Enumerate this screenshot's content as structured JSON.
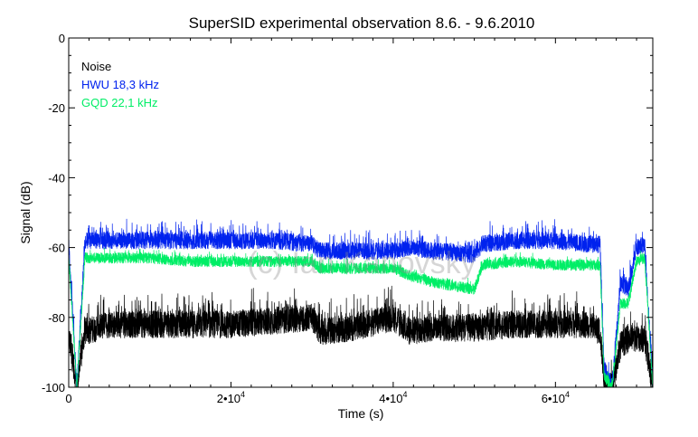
{
  "chart_data": {
    "type": "line",
    "title": "SuperSID experimental observation 8.6. - 9.6.2010",
    "xlabel": "Time (s)",
    "ylabel": "Signal (dB)",
    "xlim": [
      0,
      72000
    ],
    "ylim": [
      -100,
      0
    ],
    "x_ticks": [
      {
        "value": 0,
        "label": "0",
        "sup": ""
      },
      {
        "value": 20000,
        "label": "2•10",
        "sup": "4"
      },
      {
        "value": 40000,
        "label": "4•10",
        "sup": "4"
      },
      {
        "value": 60000,
        "label": "6•10",
        "sup": "4"
      }
    ],
    "y_ticks": [
      {
        "value": 0,
        "label": "0"
      },
      {
        "value": -20,
        "label": "-20"
      },
      {
        "value": -40,
        "label": "-40"
      },
      {
        "value": -60,
        "label": "-60"
      },
      {
        "value": -80,
        "label": "-80"
      },
      {
        "value": -100,
        "label": "-100"
      }
    ],
    "grid": false,
    "legend_position": "top-left",
    "watermark": "(c) Ian Kanovsky",
    "series": [
      {
        "name": "Noise",
        "color": "#000000",
        "x": [
          0,
          1000,
          2000,
          5000,
          10000,
          15000,
          20000,
          25000,
          30000,
          31000,
          35000,
          40000,
          42000,
          45000,
          50000,
          55000,
          60000,
          64000,
          65500,
          66000,
          67000,
          68000,
          69000,
          70000,
          71000,
          72000
        ],
        "values": [
          -85,
          -100,
          -84,
          -82,
          -82,
          -82,
          -82,
          -81,
          -80,
          -84,
          -83,
          -80,
          -84,
          -83,
          -83,
          -82,
          -82,
          -82,
          -84,
          -98,
          -100,
          -88,
          -86,
          -86,
          -86,
          -100
        ]
      },
      {
        "name": "HWU 18,3 kHz",
        "color": "#0022ee",
        "x": [
          0,
          1000,
          2000,
          5000,
          10000,
          15000,
          20000,
          25000,
          30000,
          31000,
          35000,
          40000,
          42000,
          45000,
          50000,
          51000,
          55000,
          60000,
          64000,
          65500,
          66000,
          67000,
          68000,
          69000,
          70000,
          71000,
          72000
        ],
        "values": [
          -59,
          -100,
          -58,
          -58,
          -58,
          -58,
          -58,
          -58,
          -59,
          -61,
          -61,
          -61,
          -60,
          -61,
          -62,
          -59,
          -58,
          -58,
          -59,
          -59,
          -95,
          -100,
          -70,
          -72,
          -60,
          -59,
          -100
        ]
      },
      {
        "name": "GQD 22,1 kHz",
        "color": "#00ee66",
        "x": [
          0,
          1000,
          2000,
          5000,
          10000,
          15000,
          20000,
          25000,
          30000,
          31000,
          35000,
          40000,
          42000,
          45000,
          50000,
          51000,
          55000,
          60000,
          64000,
          65500,
          66000,
          67000,
          68000,
          69000,
          70000,
          71000,
          72000
        ],
        "values": [
          -63,
          -100,
          -63,
          -63,
          -63,
          -64,
          -64,
          -64,
          -64,
          -66,
          -66,
          -66,
          -68,
          -70,
          -72,
          -65,
          -64,
          -65,
          -65,
          -65,
          -97,
          -100,
          -76,
          -76,
          -64,
          -63,
          -100
        ]
      }
    ]
  }
}
